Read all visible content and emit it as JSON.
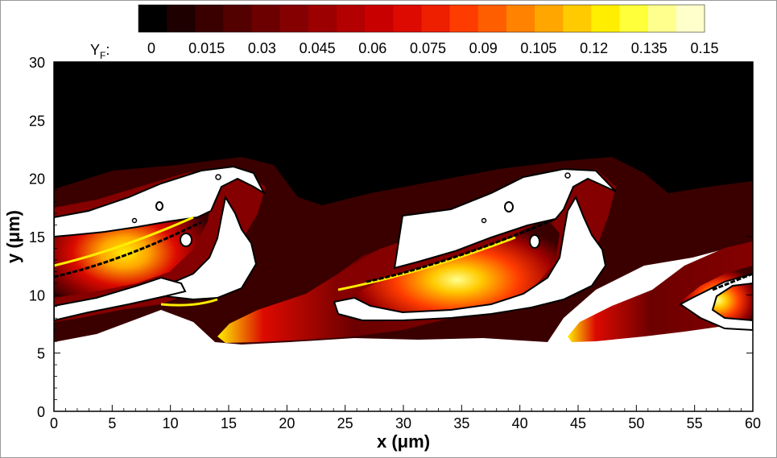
{
  "chart_data": {
    "type": "heatmap",
    "variable_symbol": "Y",
    "variable_subscript": "F",
    "variable_suffix": ":",
    "colorbar": {
      "min": 0,
      "max": 0.15,
      "tick_labels": [
        "0",
        "0.015",
        "0.03",
        "0.045",
        "0.06",
        "0.075",
        "0.09",
        "0.105",
        "0.12",
        "0.135",
        "0.15"
      ],
      "levels": 20,
      "colors": [
        "#000000",
        "#1e0000",
        "#3a0000",
        "#520000",
        "#6c0000",
        "#850000",
        "#9c0000",
        "#b30000",
        "#c80000",
        "#dc0a00",
        "#ee1e00",
        "#ff3c00",
        "#ff5e00",
        "#ff8200",
        "#ffa600",
        "#ffca00",
        "#ffee00",
        "#ffff3a",
        "#ffff8e",
        "#ffffcc"
      ],
      "tick_font": "18px"
    },
    "x_axis": {
      "title_prefix": "x (",
      "title_unit": "μm",
      "title_suffix": ")",
      "range": [
        0,
        60
      ],
      "ticks": [
        0,
        5,
        10,
        15,
        20,
        25,
        30,
        35,
        40,
        45,
        50,
        55,
        60
      ],
      "tick_labels": [
        "0",
        "5",
        "10",
        "15",
        "20",
        "25",
        "30",
        "35",
        "40",
        "45",
        "50",
        "55",
        "60"
      ]
    },
    "y_axis": {
      "title_prefix": "y (",
      "title_unit": "μm",
      "title_suffix": ")",
      "range": [
        0,
        30
      ],
      "ticks": [
        0,
        5,
        10,
        15,
        20,
        25,
        30
      ],
      "tick_labels": [
        "0",
        "5",
        "10",
        "15",
        "20",
        "25",
        "30"
      ]
    },
    "description_layers": {
      "background_value": 0,
      "free_stream_below_value": 0,
      "rollers": [
        {
          "center_x": 10,
          "center_y": 12
        },
        {
          "center_x": 32,
          "center_y": 13
        },
        {
          "center_x": 58,
          "center_y": 10
        }
      ]
    },
    "grid": false,
    "legend_position": "top"
  }
}
